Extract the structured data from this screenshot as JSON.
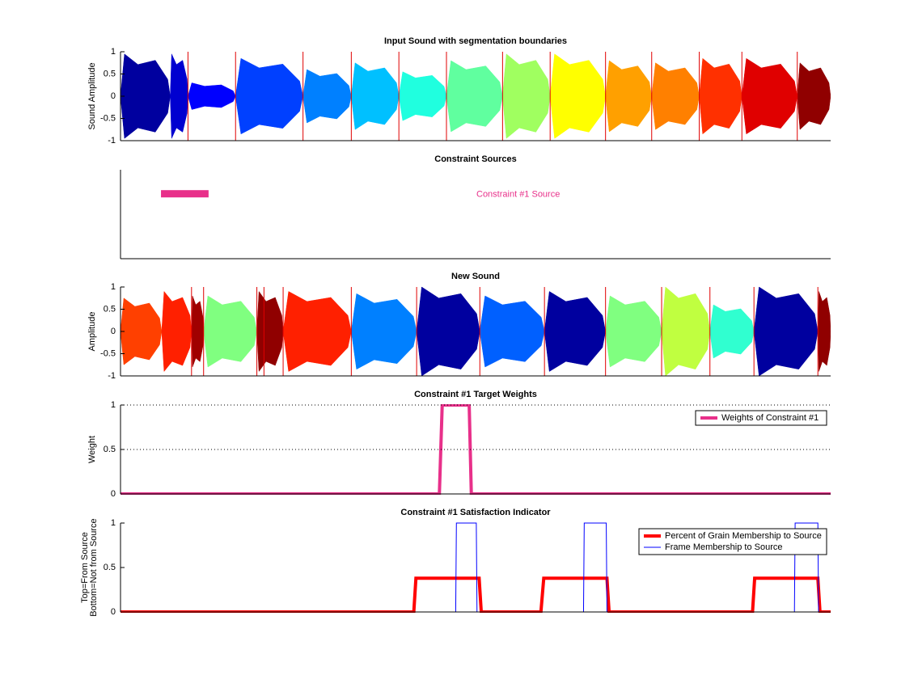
{
  "chart_data": [
    {
      "type": "waveform",
      "title": "Input Sound with segmentation boundaries",
      "ylabel": [
        "Sound Amplitude"
      ],
      "xlim": [
        0,
        100
      ],
      "ylim": [
        -1,
        1
      ],
      "yticks": [
        -1,
        -0.5,
        0,
        0.5,
        1
      ],
      "boundary_color": "#e00000",
      "boundaries": [
        9.5,
        16.2,
        25.7,
        32.5,
        39.2,
        45.9,
        53.8,
        60.5,
        68.3,
        74.8,
        81.5,
        87.5,
        95.3
      ],
      "segments": [
        {
          "start": 0,
          "end": 7,
          "peak": 0.95,
          "color": "#00009f"
        },
        {
          "start": 7,
          "end": 9.5,
          "peak": 0.95,
          "color": "#0000d0"
        },
        {
          "start": 9.5,
          "end": 16.2,
          "peak": 0.3,
          "color": "#0000ff"
        },
        {
          "start": 16.2,
          "end": 25.7,
          "peak": 0.85,
          "color": "#0040ff"
        },
        {
          "start": 25.7,
          "end": 32.5,
          "peak": 0.6,
          "color": "#0080ff"
        },
        {
          "start": 32.5,
          "end": 39.2,
          "peak": 0.75,
          "color": "#00c0ff"
        },
        {
          "start": 39.2,
          "end": 45.9,
          "peak": 0.55,
          "color": "#20ffdf"
        },
        {
          "start": 45.9,
          "end": 53.8,
          "peak": 0.8,
          "color": "#60ff9f"
        },
        {
          "start": 53.8,
          "end": 60.5,
          "peak": 0.95,
          "color": "#a0ff60"
        },
        {
          "start": 60.5,
          "end": 68.3,
          "peak": 0.95,
          "color": "#ffff00"
        },
        {
          "start": 68.3,
          "end": 74.8,
          "peak": 0.8,
          "color": "#ffa000"
        },
        {
          "start": 74.8,
          "end": 81.5,
          "peak": 0.75,
          "color": "#ff8000"
        },
        {
          "start": 81.5,
          "end": 87.5,
          "peak": 0.85,
          "color": "#ff3000"
        },
        {
          "start": 87.5,
          "end": 95.3,
          "peak": 0.85,
          "color": "#e00000"
        },
        {
          "start": 95.3,
          "end": 100,
          "peak": 0.75,
          "color": "#900000"
        }
      ]
    },
    {
      "type": "range",
      "title": "Constraint Sources",
      "xlim": [
        0,
        100
      ],
      "ylim": [
        0,
        1
      ],
      "ranges": [
        {
          "name": "Constraint #1 Source",
          "color": "#e8308a",
          "start": 5.7,
          "end": 12.4,
          "y": 0.73
        }
      ]
    },
    {
      "type": "waveform",
      "title": "New Sound",
      "ylabel": [
        "Amplitude"
      ],
      "xlim": [
        0,
        100
      ],
      "ylim": [
        -1,
        1
      ],
      "yticks": [
        -1,
        -0.5,
        0,
        0.5,
        1
      ],
      "boundary_color": "#e00000",
      "boundaries": [
        10.0,
        11.7,
        19.2,
        20.2,
        22.9,
        32.5,
        41.7,
        50.6,
        59.7,
        68.3,
        76.2,
        83.0,
        89.2,
        98.2
      ],
      "segments": [
        {
          "start": 0,
          "end": 5.8,
          "peak": 0.75,
          "color": "#ff4000"
        },
        {
          "start": 5.8,
          "end": 10.0,
          "peak": 0.9,
          "color": "#ff2000"
        },
        {
          "start": 10.0,
          "end": 11.7,
          "peak": 0.8,
          "color": "#a00000"
        },
        {
          "start": 11.7,
          "end": 19.2,
          "peak": 0.8,
          "color": "#80ff80"
        },
        {
          "start": 19.2,
          "end": 22.9,
          "peak": 0.9,
          "color": "#900000"
        },
        {
          "start": 22.9,
          "end": 32.5,
          "peak": 0.9,
          "color": "#ff2000"
        },
        {
          "start": 32.5,
          "end": 41.7,
          "peak": 0.85,
          "color": "#0080ff"
        },
        {
          "start": 41.7,
          "end": 50.6,
          "peak": 1.0,
          "color": "#00009f"
        },
        {
          "start": 50.6,
          "end": 59.7,
          "peak": 0.8,
          "color": "#0060ff"
        },
        {
          "start": 59.7,
          "end": 68.3,
          "peak": 0.9,
          "color": "#00009f"
        },
        {
          "start": 68.3,
          "end": 76.2,
          "peak": 0.8,
          "color": "#80ff80"
        },
        {
          "start": 76.2,
          "end": 83.0,
          "peak": 1.0,
          "color": "#c0ff40"
        },
        {
          "start": 83.0,
          "end": 89.2,
          "peak": 0.6,
          "color": "#30ffd0"
        },
        {
          "start": 89.2,
          "end": 98.2,
          "peak": 1.0,
          "color": "#00009f"
        },
        {
          "start": 98.2,
          "end": 100,
          "peak": 0.9,
          "color": "#900000"
        }
      ]
    },
    {
      "type": "line",
      "title": "Constraint #1 Target Weights",
      "ylabel": [
        "Weight"
      ],
      "xlim": [
        0,
        100
      ],
      "ylim": [
        0,
        1
      ],
      "yticks": [
        0,
        0.5,
        1
      ],
      "grid": true,
      "legend": "upper right",
      "series": [
        {
          "name": "Weights of Constraint #1",
          "color": "#e8308a",
          "line_width": 4,
          "x": [
            0,
            44.9,
            45.3,
            49.1,
            49.4,
            100
          ],
          "values": [
            0,
            0,
            1,
            1,
            0,
            0
          ]
        }
      ]
    },
    {
      "type": "line",
      "title": "Constraint #1 Satisfaction Indicator",
      "ylabel": [
        "Top=From Source",
        "Bottom=Not from Source"
      ],
      "xlim": [
        0,
        100
      ],
      "ylim": [
        0,
        1
      ],
      "yticks": [
        0,
        0.5,
        1
      ],
      "grid": false,
      "legend": "upper right",
      "series": [
        {
          "name": "Percent of Grain Membership to Source",
          "color": "#ff0000",
          "line_width": 4,
          "x": [
            0,
            41.3,
            41.6,
            50.5,
            50.8,
            59.2,
            59.6,
            68.5,
            68.8,
            89.0,
            89.3,
            98.2,
            98.5,
            100
          ],
          "values": [
            0,
            0,
            0.38,
            0.38,
            0,
            0,
            0.38,
            0.38,
            0,
            0,
            0.38,
            0.38,
            0,
            0
          ]
        },
        {
          "name": "Frame Membership to Source",
          "color": "#0000ff",
          "line_width": 1,
          "x": [
            0,
            47.2,
            47.3,
            50.1,
            50.2,
            65.2,
            65.3,
            68.4,
            68.5,
            94.9,
            95.0,
            98.2,
            98.3,
            100
          ],
          "values": [
            0,
            0,
            1,
            1,
            0,
            0,
            1,
            1,
            0,
            0,
            1,
            1,
            0,
            0
          ]
        }
      ]
    }
  ]
}
